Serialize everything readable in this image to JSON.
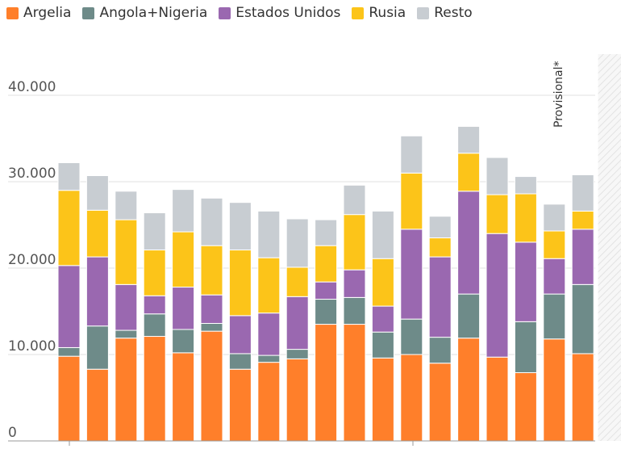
{
  "chart_data": {
    "type": "bar",
    "stacked": true,
    "categories": [
      "",
      "",
      "",
      "",
      "",
      "",
      "",
      "",
      "",
      "",
      "",
      "",
      "",
      "",
      "",
      "",
      "",
      "",
      "",
      ""
    ],
    "series": [
      {
        "name": "Argelia",
        "color": "#ff7f2a",
        "values": [
          9800,
          8300,
          11900,
          12100,
          10200,
          12700,
          8300,
          9100,
          9500,
          13500,
          13500,
          9600,
          10000,
          9000,
          11900,
          9700,
          7900,
          11800,
          10100,
          0
        ]
      },
      {
        "name": "Angola+Nigeria",
        "color": "#6e8b89",
        "values": [
          1000,
          5000,
          900,
          2600,
          2700,
          900,
          1800,
          800,
          1100,
          2900,
          3100,
          3000,
          4100,
          3000,
          5100,
          0,
          5900,
          5200,
          8000,
          0
        ]
      },
      {
        "name": "Estados Unidos",
        "color": "#9a68b0",
        "values": [
          9500,
          8000,
          5300,
          2100,
          4900,
          3300,
          4400,
          4900,
          6100,
          2000,
          3200,
          3000,
          10400,
          9300,
          11900,
          14300,
          9200,
          4100,
          6400,
          0
        ]
      },
      {
        "name": "Rusia",
        "color": "#fcc419",
        "values": [
          8700,
          5400,
          7500,
          5300,
          6400,
          5700,
          7600,
          6400,
          3400,
          4200,
          6400,
          5500,
          6500,
          2200,
          4400,
          4500,
          5600,
          3200,
          2100,
          0
        ]
      },
      {
        "name": "Resto",
        "color": "#c8cdd2",
        "values": [
          3200,
          4000,
          3300,
          4300,
          4900,
          5500,
          5500,
          5400,
          5600,
          3000,
          3400,
          5500,
          4300,
          2500,
          3100,
          4300,
          2000,
          3100,
          4200,
          0
        ]
      }
    ],
    "ylim": [
      0,
      45000
    ],
    "yticks": [
      "0",
      "10.000",
      "20.000",
      "30.000",
      "40.000"
    ],
    "ytick_values": [
      0,
      10000,
      20000,
      30000,
      40000
    ],
    "grid": true,
    "legend_position": "top-left",
    "annotation": "Provisional*"
  }
}
